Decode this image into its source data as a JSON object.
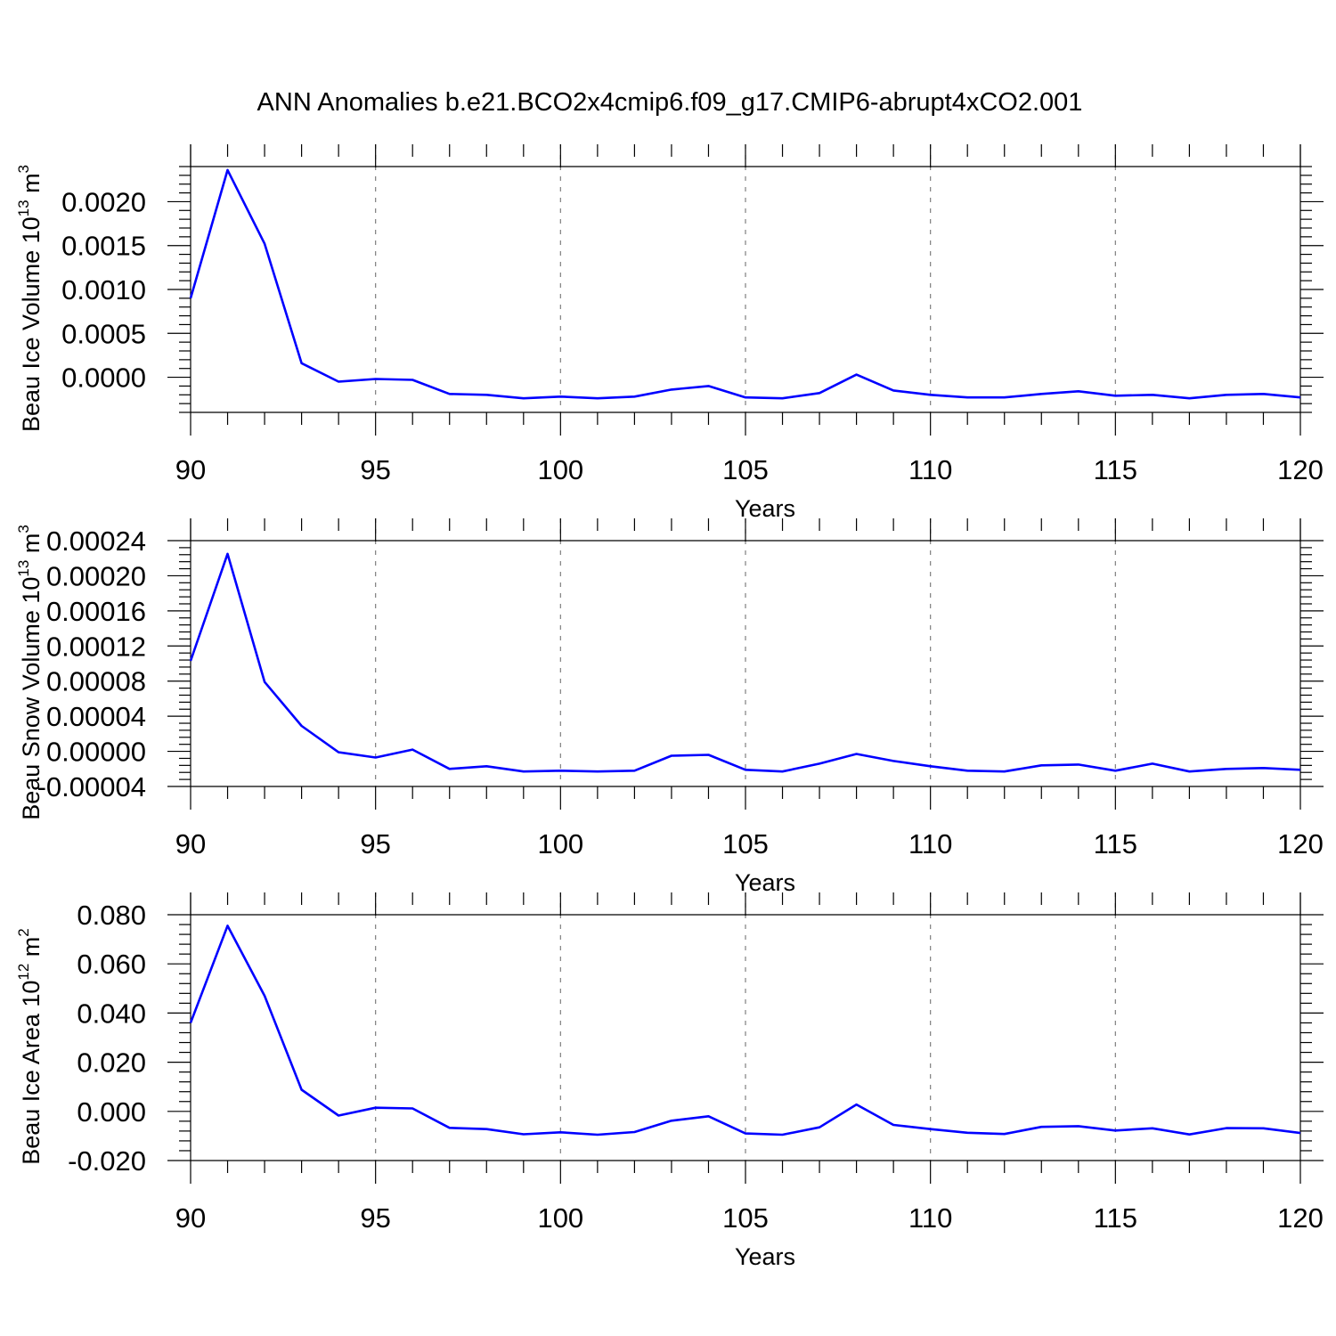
{
  "title": "ANN Anomalies b.e21.BCO2x4cmip6.f09_g17.CMIP6-abrupt4xCO2.001",
  "colors": {
    "line": "#0000ff",
    "axis": "#000000",
    "grid": "#7f7f7f"
  },
  "chart_data": [
    {
      "type": "line",
      "ylabel": {
        "text": "Beau Ice Volume 10",
        "sup": "13",
        "unit": " m",
        "unit_sup": "3"
      },
      "xlabel": "Years",
      "xlim": [
        90,
        120
      ],
      "ylim": [
        -0.0004,
        0.0024
      ],
      "x_ticks": [
        "90",
        "95",
        "100",
        "105",
        "110",
        "115",
        "120"
      ],
      "y_ticks": [
        {
          "value": 0.0,
          "label": "0.0000"
        },
        {
          "value": 0.0005,
          "label": "0.0005"
        },
        {
          "value": 0.001,
          "label": "0.0010"
        },
        {
          "value": 0.0015,
          "label": "0.0015"
        },
        {
          "value": 0.002,
          "label": "0.0020"
        }
      ],
      "grid": "vertical dashed at major x ticks",
      "series": [
        {
          "x": [
            90,
            91,
            92,
            93,
            94,
            95,
            96,
            97,
            98,
            99,
            100,
            101,
            102,
            103,
            104,
            105,
            106,
            107,
            108,
            109,
            110,
            111,
            112,
            113,
            114,
            115,
            116,
            117,
            118,
            119,
            120
          ],
          "values": [
            0.0009,
            0.00236,
            0.00152,
            0.00016,
            -5e-05,
            -2e-05,
            -3e-05,
            -0.00019,
            -0.0002,
            -0.00024,
            -0.00022,
            -0.00024,
            -0.00022,
            -0.00014,
            -0.0001,
            -0.00023,
            -0.00024,
            -0.00018,
            3e-05,
            -0.00015,
            -0.0002,
            -0.00023,
            -0.00023,
            -0.00019,
            -0.00016,
            -0.00021,
            -0.0002,
            -0.00024,
            -0.0002,
            -0.00019,
            -0.00023
          ]
        }
      ]
    },
    {
      "type": "line",
      "ylabel": {
        "text": "Beau Snow Volume 10",
        "sup": "13",
        "unit": " m",
        "unit_sup": "3"
      },
      "xlabel": "Years",
      "xlim": [
        90,
        120
      ],
      "ylim": [
        -4e-05,
        0.00024
      ],
      "x_ticks": [
        "90",
        "95",
        "100",
        "105",
        "110",
        "115",
        "120"
      ],
      "y_ticks": [
        {
          "value": -4e-05,
          "label": "-0.00004"
        },
        {
          "value": 0.0,
          "label": "0.00000"
        },
        {
          "value": 4e-05,
          "label": "0.00004"
        },
        {
          "value": 8e-05,
          "label": "0.00008"
        },
        {
          "value": 0.00012,
          "label": "0.00012"
        },
        {
          "value": 0.00016,
          "label": "0.00016"
        },
        {
          "value": 0.0002,
          "label": "0.00020"
        },
        {
          "value": 0.00024,
          "label": "0.00024"
        }
      ],
      "grid": "vertical dashed at major x ticks",
      "series": [
        {
          "x": [
            90,
            91,
            92,
            93,
            94,
            95,
            96,
            97,
            98,
            99,
            100,
            101,
            102,
            103,
            104,
            105,
            106,
            107,
            108,
            109,
            110,
            111,
            112,
            113,
            114,
            115,
            116,
            117,
            118,
            119,
            120
          ],
          "values": [
            0.000103,
            0.000225,
            7.9e-05,
            2.9e-05,
            -1e-06,
            -7e-06,
            2e-06,
            -2e-05,
            -1.7e-05,
            -2.3e-05,
            -2.2e-05,
            -2.3e-05,
            -2.2e-05,
            -5e-06,
            -4e-06,
            -2.1e-05,
            -2.3e-05,
            -1.4e-05,
            -3e-06,
            -1.1e-05,
            -1.7e-05,
            -2.2e-05,
            -2.3e-05,
            -1.6e-05,
            -1.5e-05,
            -2.2e-05,
            -1.4e-05,
            -2.3e-05,
            -2e-05,
            -1.9e-05,
            -2.1e-05
          ]
        }
      ]
    },
    {
      "type": "line",
      "ylabel": {
        "text": "Beau Ice Area 10",
        "sup": "12",
        "unit": " m",
        "unit_sup": "2"
      },
      "xlabel": "Years",
      "xlim": [
        90,
        120
      ],
      "ylim": [
        -0.02,
        0.08
      ],
      "x_ticks": [
        "90",
        "95",
        "100",
        "105",
        "110",
        "115",
        "120"
      ],
      "y_ticks": [
        {
          "value": -0.02,
          "label": "-0.020"
        },
        {
          "value": 0.0,
          "label": "0.000"
        },
        {
          "value": 0.02,
          "label": "0.020"
        },
        {
          "value": 0.04,
          "label": "0.040"
        },
        {
          "value": 0.06,
          "label": "0.060"
        },
        {
          "value": 0.08,
          "label": "0.080"
        }
      ],
      "grid": "vertical dashed at major x ticks",
      "series": [
        {
          "x": [
            90,
            91,
            92,
            93,
            94,
            95,
            96,
            97,
            98,
            99,
            100,
            101,
            102,
            103,
            104,
            105,
            106,
            107,
            108,
            109,
            110,
            111,
            112,
            113,
            114,
            115,
            116,
            117,
            118,
            119,
            120
          ],
          "values": [
            0.036,
            0.0755,
            0.047,
            0.0088,
            -0.0017,
            0.0015,
            0.0012,
            -0.0067,
            -0.0072,
            -0.0093,
            -0.0085,
            -0.0095,
            -0.0084,
            -0.0038,
            -0.002,
            -0.009,
            -0.0095,
            -0.0065,
            0.0028,
            -0.0055,
            -0.0072,
            -0.0087,
            -0.0092,
            -0.0063,
            -0.006,
            -0.0078,
            -0.0069,
            -0.0094,
            -0.0068,
            -0.0069,
            -0.0088
          ]
        }
      ]
    }
  ]
}
